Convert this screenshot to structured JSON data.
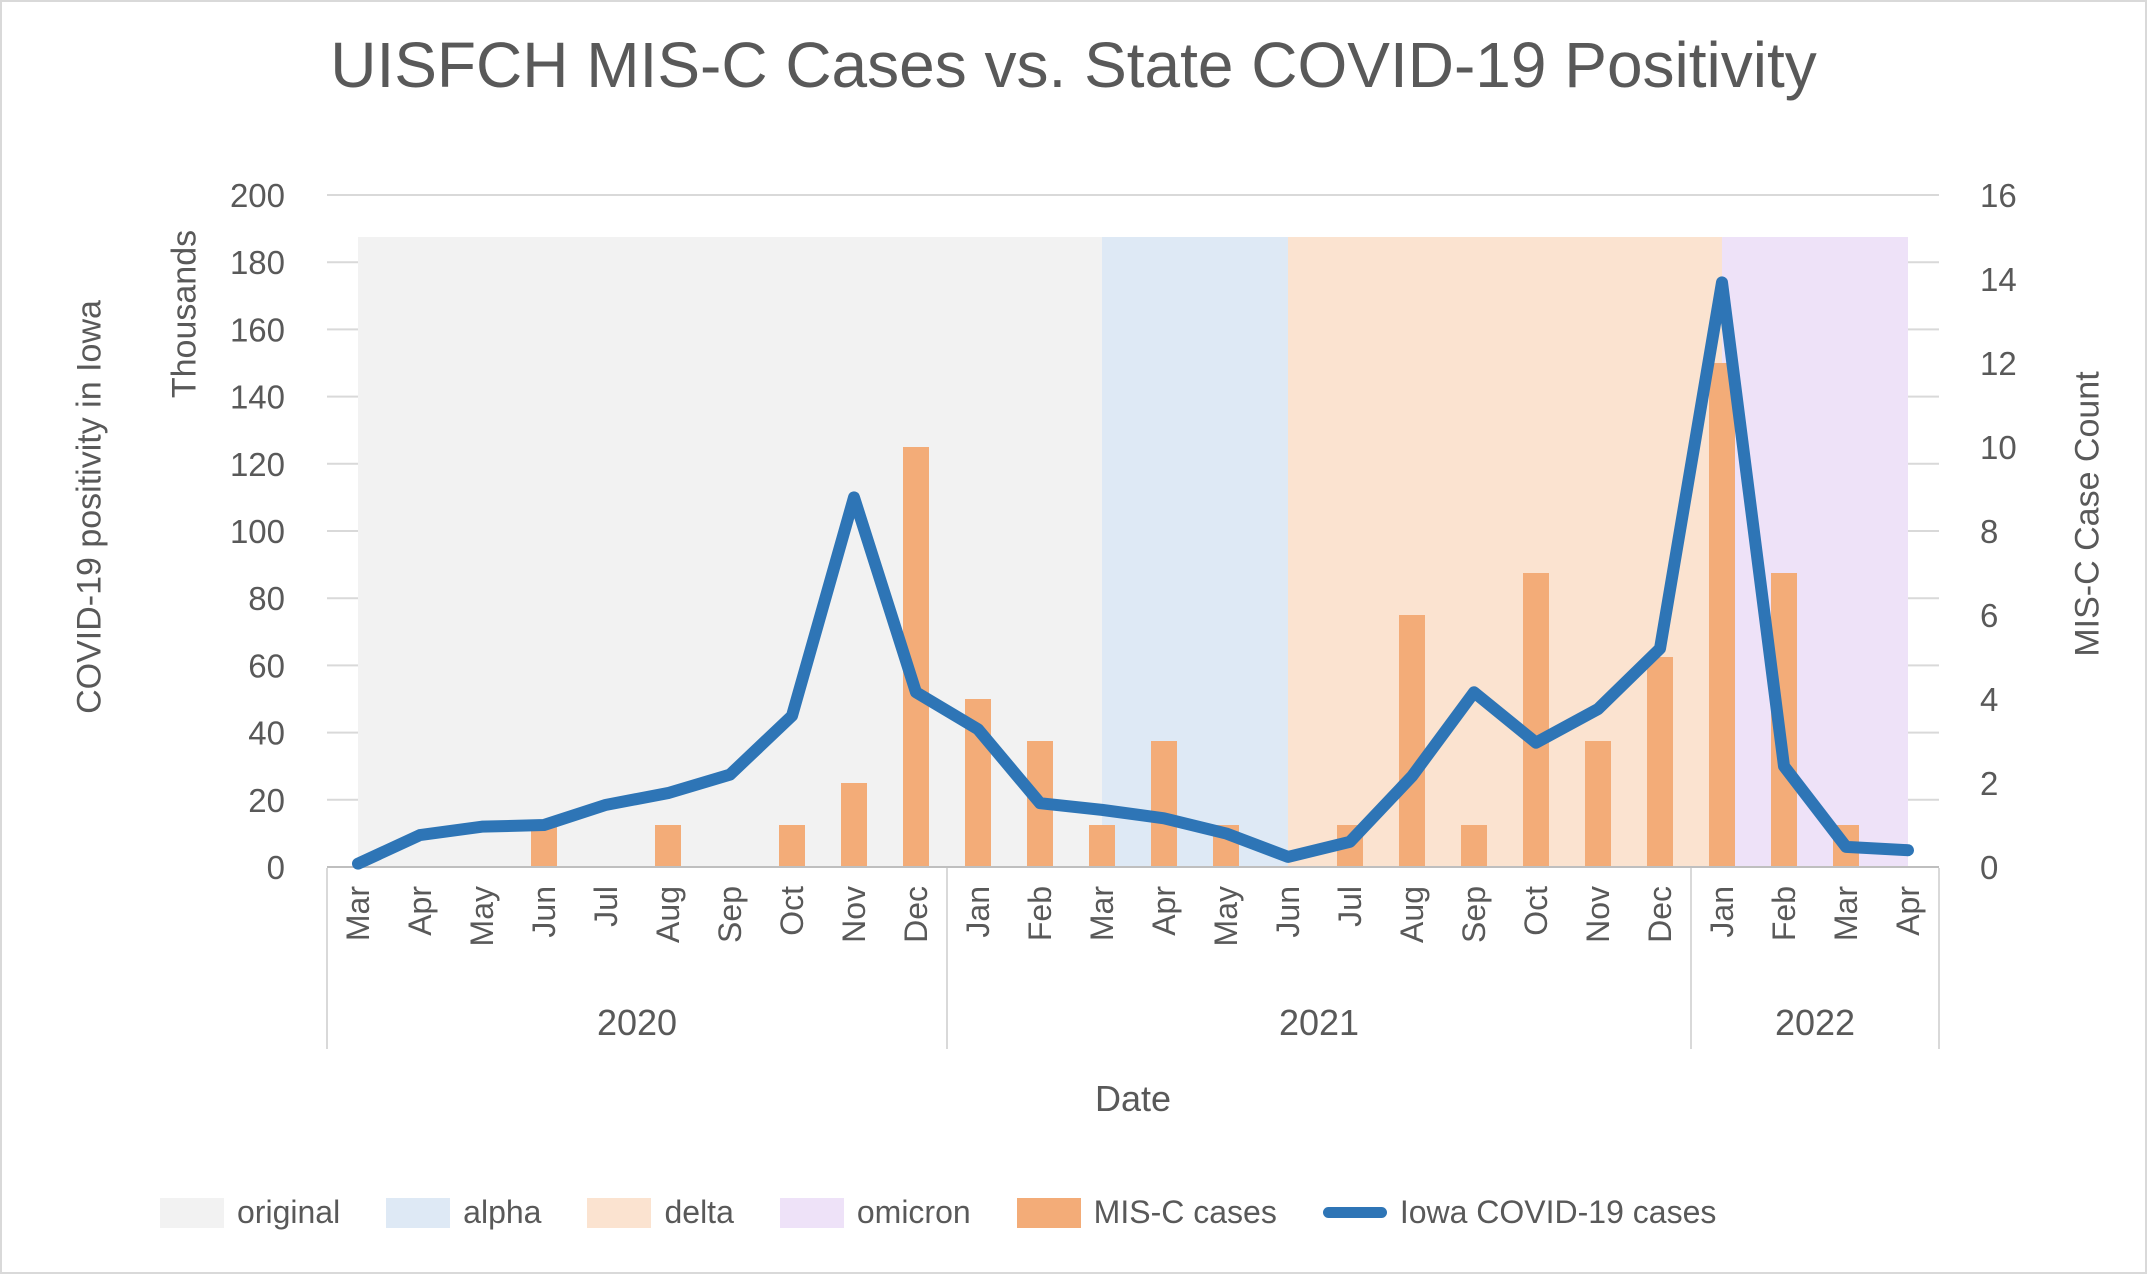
{
  "chart_data": {
    "type": "combo-bar-line",
    "title": "UISFCH MIS-C Cases vs. State COVID-19 Positivity",
    "x": {
      "label": "Date",
      "months": [
        "Mar",
        "Apr",
        "May",
        "Jun",
        "Jul",
        "Aug",
        "Sep",
        "Oct",
        "Nov",
        "Dec",
        "Jan",
        "Feb",
        "Mar",
        "Apr",
        "May",
        "Jun",
        "Jul",
        "Aug",
        "Sep",
        "Oct",
        "Nov",
        "Dec",
        "Jan",
        "Feb",
        "Mar",
        "Apr"
      ],
      "years": [
        {
          "label": "2020",
          "from": 0,
          "to": 9
        },
        {
          "label": "2021",
          "from": 10,
          "to": 21
        },
        {
          "label": "2022",
          "from": 22,
          "to": 25
        }
      ]
    },
    "left_axis": {
      "title": "COVID-19 positivity in Iowa",
      "units": "Thousands",
      "min": 0,
      "max": 200,
      "step": 20
    },
    "right_axis": {
      "title": "MIS-C Case Count",
      "min": 0,
      "max": 16,
      "step": 2
    },
    "series": [
      {
        "name": "MIS-C cases",
        "type": "bar",
        "axis": "right",
        "color": "#F3AC78",
        "values": [
          0,
          0,
          0,
          1,
          0,
          1,
          0,
          1,
          2,
          10,
          4,
          3,
          1,
          3,
          1,
          0,
          1,
          6,
          1,
          7,
          3,
          5,
          12,
          7,
          1,
          0
        ]
      },
      {
        "name": "Iowa COVID-19 cases",
        "type": "line",
        "axis": "left",
        "color": "#2E75B6",
        "values": [
          1,
          9.5,
          12,
          12.5,
          18.5,
          22,
          27.5,
          45,
          110,
          52,
          41,
          19,
          17,
          14.5,
          10,
          3,
          7.5,
          27,
          52,
          37,
          47,
          65,
          174,
          30,
          6,
          5
        ]
      }
    ],
    "regions": [
      {
        "name": "original",
        "from": 0,
        "to": 12,
        "top_right_axis": 15,
        "color": "#F2F2F2"
      },
      {
        "name": "alpha",
        "from": 12,
        "to": 15,
        "top_right_axis": 15,
        "color": "#DEE9F5"
      },
      {
        "name": "delta",
        "from": 15,
        "to": 22,
        "top_right_axis": 15,
        "color": "#FBE3D0"
      },
      {
        "name": "omicron",
        "from": 22,
        "to": 25,
        "top_right_axis": 15,
        "color": "#EEE2F8"
      }
    ],
    "legend": {
      "items": [
        {
          "label": "original",
          "swatch": "box",
          "color": "#F2F2F2"
        },
        {
          "label": "alpha",
          "swatch": "box",
          "color": "#DEE9F5"
        },
        {
          "label": "delta",
          "swatch": "box",
          "color": "#FBE3D0"
        },
        {
          "label": "omicron",
          "swatch": "box",
          "color": "#EEE2F8"
        },
        {
          "label": "MIS-C cases",
          "swatch": "box",
          "color": "#F3AC78"
        },
        {
          "label": "Iowa COVID-19 cases",
          "swatch": "line",
          "color": "#2E75B6"
        }
      ],
      "position": "bottom"
    },
    "style": {
      "grid": true,
      "gridline_color": "#D9D9D9",
      "axis_line_color": "#BFBFBF",
      "text_color": "#595959"
    }
  }
}
